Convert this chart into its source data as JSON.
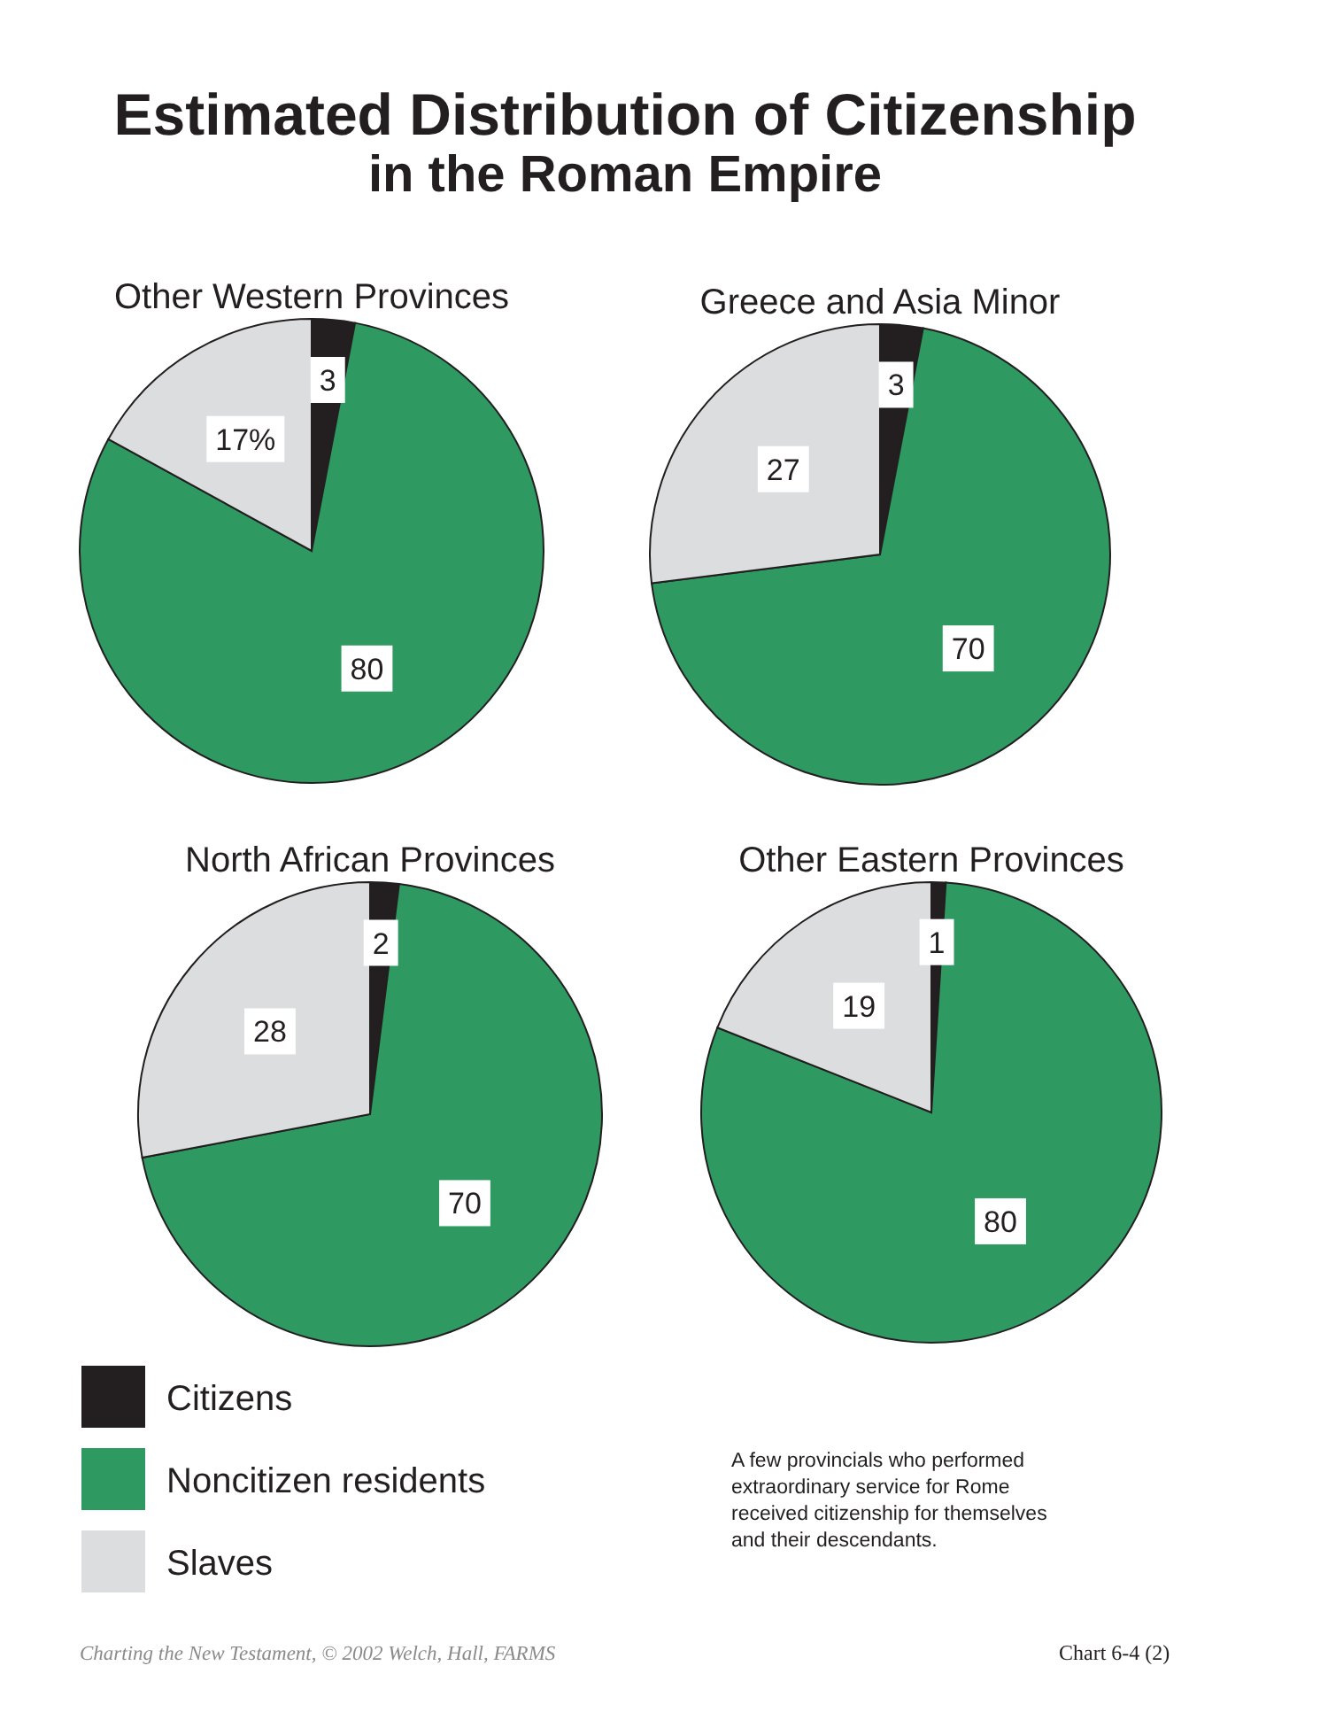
{
  "chart_data": [
    {
      "type": "other",
      "title": "Estimated Distribution of Citizenship",
      "subtitle": "in the Roman Empire"
    },
    {
      "type": "pie",
      "title": "Other Western Provinces",
      "categories": [
        null,
        null,
        null
      ],
      "values": [
        3,
        80,
        17
      ],
      "colors": [
        "#231f20",
        "#2e9960",
        "#dcdddf"
      ],
      "value_labels": [
        "3",
        "80",
        "17%"
      ]
    },
    {
      "type": "pie",
      "title": "Greece and Asia Minor",
      "categories": [
        null,
        null,
        null
      ],
      "values": [
        3,
        70,
        27
      ],
      "colors": [
        "#231f20",
        "#2e9960",
        "#dcdddf"
      ],
      "data_labels": true
    },
    {
      "type": "pie",
      "title": "North African Provinces",
      "categories": [
        "Citizens",
        "Noncitizen residents",
        "Slaves"
      ],
      "values": [
        2,
        70,
        28
      ],
      "colors": [
        "#231f20",
        "#2e9960",
        "#dcdddf"
      ],
      "data_labels": true,
      "legend": "bottom"
    },
    {
      "type": "pie",
      "title": "Other Eastern Provinces",
      "categories": [
        null,
        null,
        null
      ],
      "values": [
        1,
        80,
        19
      ],
      "colors": [
        "#231f20",
        "#2e9960",
        "#dcdddf"
      ],
      "data_labels": true
    },
    {
      "type": "other",
      "annotations": [
        "A few provincials who performed extraordinary service for Rome received citizenship for themselves and their descendants.",
        "Charting the New Testament, © 2002 Welch, Hall, FARMS",
        "Chart 6-4 (2)"
      ]
    }
  ]
}
